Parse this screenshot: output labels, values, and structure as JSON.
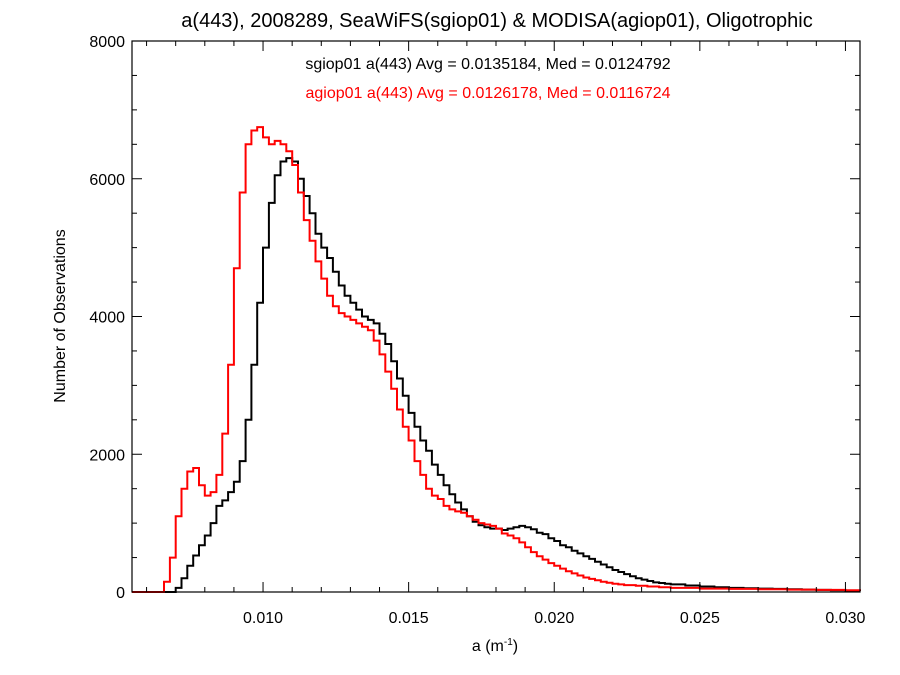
{
  "chart_data": {
    "type": "line",
    "title": "a(443), 2008289, SeaWiFS(sgiop01) & MODISA(agiop01), Oligotrophic",
    "xlabel_main": "a (m",
    "xlabel_sup": "-1",
    "xlabel_close": ")",
    "ylabel": "Number of Observations",
    "xlim": [
      0.0055,
      0.0305
    ],
    "ylim": [
      0,
      8000
    ],
    "xticks": [
      0.01,
      0.015,
      0.02,
      0.025,
      0.03
    ],
    "xtick_labels": [
      "0.010",
      "0.015",
      "0.020",
      "0.025",
      "0.030"
    ],
    "yticks": [
      0,
      2000,
      4000,
      6000,
      8000
    ],
    "ytick_labels": [
      "0",
      "2000",
      "4000",
      "6000",
      "8000"
    ],
    "grid": false,
    "step_plot": true,
    "series": [
      {
        "name": "sgiop01",
        "annotation": "sgiop01 a(443) Avg = 0.0135184, Med = 0.0124792",
        "color": "#000000",
        "points": [
          [
            0.0055,
            0
          ],
          [
            0.0068,
            0
          ],
          [
            0.007,
            60
          ],
          [
            0.0072,
            200
          ],
          [
            0.0074,
            380
          ],
          [
            0.0076,
            530
          ],
          [
            0.0078,
            680
          ],
          [
            0.008,
            820
          ],
          [
            0.0082,
            1000
          ],
          [
            0.0084,
            1250
          ],
          [
            0.0086,
            1330
          ],
          [
            0.0088,
            1450
          ],
          [
            0.009,
            1600
          ],
          [
            0.0092,
            1900
          ],
          [
            0.0094,
            2500
          ],
          [
            0.0096,
            3300
          ],
          [
            0.0098,
            4200
          ],
          [
            0.01,
            5000
          ],
          [
            0.0102,
            5650
          ],
          [
            0.0104,
            6050
          ],
          [
            0.0106,
            6250
          ],
          [
            0.0108,
            6300
          ],
          [
            0.011,
            6250
          ],
          [
            0.0112,
            6000
          ],
          [
            0.0114,
            5750
          ],
          [
            0.0116,
            5500
          ],
          [
            0.0118,
            5200
          ],
          [
            0.012,
            5000
          ],
          [
            0.0122,
            4850
          ],
          [
            0.0124,
            4650
          ],
          [
            0.0126,
            4450
          ],
          [
            0.0128,
            4300
          ],
          [
            0.013,
            4200
          ],
          [
            0.0132,
            4100
          ],
          [
            0.0134,
            4000
          ],
          [
            0.0136,
            3950
          ],
          [
            0.0138,
            3900
          ],
          [
            0.014,
            3750
          ],
          [
            0.0142,
            3600
          ],
          [
            0.0144,
            3350
          ],
          [
            0.0146,
            3100
          ],
          [
            0.0148,
            2850
          ],
          [
            0.015,
            2600
          ],
          [
            0.0152,
            2400
          ],
          [
            0.0154,
            2200
          ],
          [
            0.0156,
            2050
          ],
          [
            0.0158,
            1850
          ],
          [
            0.016,
            1700
          ],
          [
            0.0162,
            1550
          ],
          [
            0.0164,
            1420
          ],
          [
            0.0166,
            1300
          ],
          [
            0.0168,
            1200
          ],
          [
            0.017,
            1100
          ],
          [
            0.0172,
            1020
          ],
          [
            0.0174,
            970
          ],
          [
            0.0176,
            940
          ],
          [
            0.0178,
            920
          ],
          [
            0.018,
            920
          ],
          [
            0.0182,
            900
          ],
          [
            0.0184,
            920
          ],
          [
            0.0186,
            940
          ],
          [
            0.0188,
            960
          ],
          [
            0.019,
            940
          ],
          [
            0.0192,
            910
          ],
          [
            0.0194,
            860
          ],
          [
            0.0196,
            840
          ],
          [
            0.0198,
            780
          ],
          [
            0.02,
            740
          ],
          [
            0.0202,
            680
          ],
          [
            0.0204,
            650
          ],
          [
            0.0206,
            600
          ],
          [
            0.0208,
            560
          ],
          [
            0.021,
            520
          ],
          [
            0.0212,
            480
          ],
          [
            0.0214,
            440
          ],
          [
            0.0216,
            400
          ],
          [
            0.0218,
            360
          ],
          [
            0.022,
            320
          ],
          [
            0.0222,
            290
          ],
          [
            0.0224,
            260
          ],
          [
            0.0226,
            230
          ],
          [
            0.0228,
            200
          ],
          [
            0.023,
            180
          ],
          [
            0.0232,
            160
          ],
          [
            0.0234,
            140
          ],
          [
            0.0236,
            130
          ],
          [
            0.0238,
            120
          ],
          [
            0.024,
            110
          ],
          [
            0.0245,
            95
          ],
          [
            0.025,
            80
          ],
          [
            0.0255,
            70
          ],
          [
            0.026,
            60
          ],
          [
            0.0265,
            55
          ],
          [
            0.027,
            50
          ],
          [
            0.0275,
            45
          ],
          [
            0.028,
            40
          ],
          [
            0.0285,
            35
          ],
          [
            0.029,
            30
          ],
          [
            0.0295,
            25
          ],
          [
            0.03,
            20
          ],
          [
            0.0305,
            15
          ]
        ]
      },
      {
        "name": "agiop01",
        "annotation": "agiop01 a(443) Avg = 0.0126178, Med = 0.0116724",
        "color": "#ff0000",
        "points": [
          [
            0.0055,
            0
          ],
          [
            0.0064,
            0
          ],
          [
            0.0066,
            150
          ],
          [
            0.0068,
            500
          ],
          [
            0.007,
            1100
          ],
          [
            0.0072,
            1500
          ],
          [
            0.0074,
            1750
          ],
          [
            0.0076,
            1800
          ],
          [
            0.0078,
            1550
          ],
          [
            0.008,
            1400
          ],
          [
            0.0082,
            1450
          ],
          [
            0.0084,
            1700
          ],
          [
            0.0086,
            2300
          ],
          [
            0.0088,
            3300
          ],
          [
            0.009,
            4700
          ],
          [
            0.0092,
            5800
          ],
          [
            0.0094,
            6500
          ],
          [
            0.0096,
            6700
          ],
          [
            0.0098,
            6750
          ],
          [
            0.01,
            6600
          ],
          [
            0.0102,
            6500
          ],
          [
            0.0104,
            6550
          ],
          [
            0.0106,
            6500
          ],
          [
            0.0108,
            6400
          ],
          [
            0.011,
            6200
          ],
          [
            0.0112,
            5800
          ],
          [
            0.0114,
            5400
          ],
          [
            0.0116,
            5100
          ],
          [
            0.0118,
            4800
          ],
          [
            0.012,
            4550
          ],
          [
            0.0122,
            4300
          ],
          [
            0.0124,
            4150
          ],
          [
            0.0126,
            4050
          ],
          [
            0.0128,
            4000
          ],
          [
            0.013,
            3950
          ],
          [
            0.0132,
            3900
          ],
          [
            0.0134,
            3850
          ],
          [
            0.0136,
            3800
          ],
          [
            0.0138,
            3650
          ],
          [
            0.014,
            3450
          ],
          [
            0.0142,
            3200
          ],
          [
            0.0144,
            2950
          ],
          [
            0.0146,
            2650
          ],
          [
            0.0148,
            2400
          ],
          [
            0.015,
            2200
          ],
          [
            0.0152,
            1900
          ],
          [
            0.0154,
            1700
          ],
          [
            0.0156,
            1500
          ],
          [
            0.0158,
            1400
          ],
          [
            0.016,
            1350
          ],
          [
            0.0162,
            1250
          ],
          [
            0.0164,
            1200
          ],
          [
            0.0166,
            1170
          ],
          [
            0.0168,
            1150
          ],
          [
            0.017,
            1100
          ],
          [
            0.0172,
            1050
          ],
          [
            0.0174,
            1000
          ],
          [
            0.0176,
            980
          ],
          [
            0.0178,
            960
          ],
          [
            0.018,
            920
          ],
          [
            0.0182,
            850
          ],
          [
            0.0184,
            820
          ],
          [
            0.0186,
            780
          ],
          [
            0.0188,
            720
          ],
          [
            0.019,
            650
          ],
          [
            0.0192,
            580
          ],
          [
            0.0194,
            520
          ],
          [
            0.0196,
            470
          ],
          [
            0.0198,
            420
          ],
          [
            0.02,
            380
          ],
          [
            0.0202,
            340
          ],
          [
            0.0204,
            300
          ],
          [
            0.0206,
            270
          ],
          [
            0.0208,
            240
          ],
          [
            0.021,
            210
          ],
          [
            0.0212,
            190
          ],
          [
            0.0214,
            170
          ],
          [
            0.0216,
            150
          ],
          [
            0.0218,
            135
          ],
          [
            0.022,
            120
          ],
          [
            0.0222,
            110
          ],
          [
            0.0224,
            100
          ],
          [
            0.0228,
            90
          ],
          [
            0.0232,
            80
          ],
          [
            0.0236,
            70
          ],
          [
            0.024,
            60
          ],
          [
            0.025,
            50
          ],
          [
            0.026,
            45
          ],
          [
            0.027,
            40
          ],
          [
            0.028,
            35
          ],
          [
            0.029,
            30
          ],
          [
            0.03,
            25
          ],
          [
            0.0305,
            20
          ]
        ]
      }
    ]
  }
}
